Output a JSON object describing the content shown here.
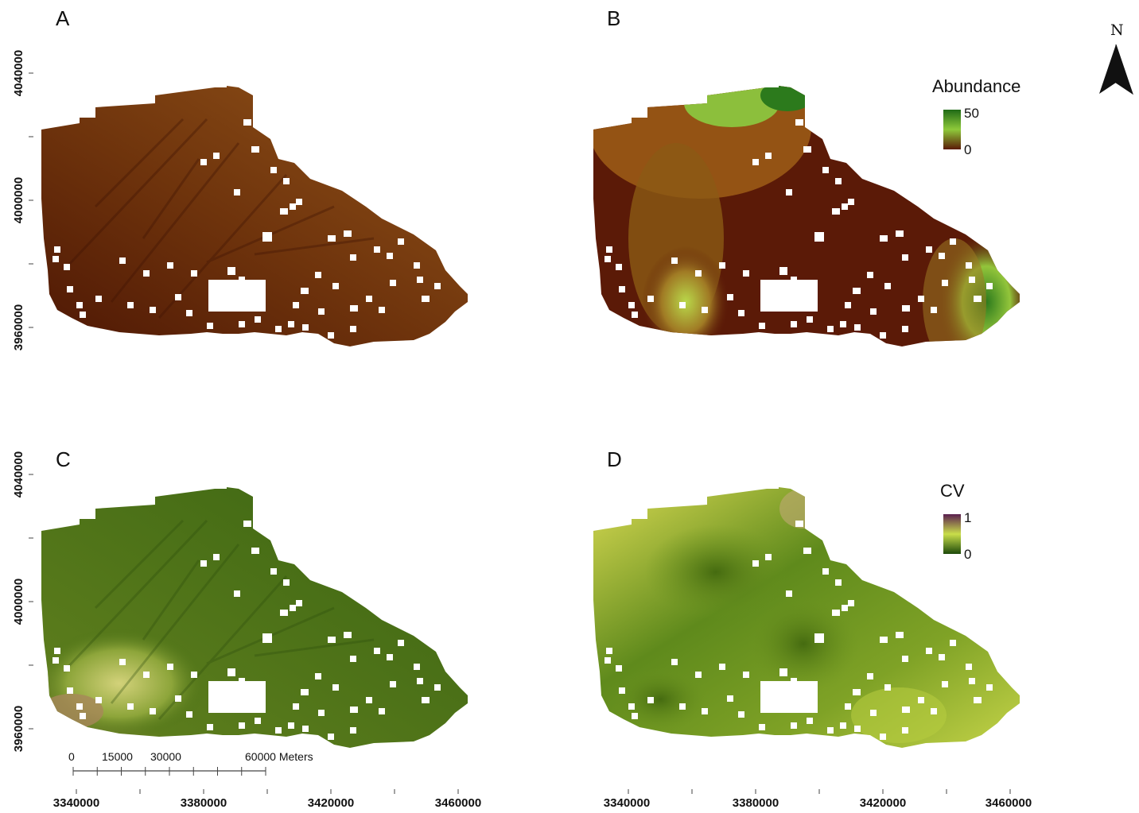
{
  "panels": {
    "a": {
      "label": "A"
    },
    "b": {
      "label": "B"
    },
    "c": {
      "label": "C"
    },
    "d": {
      "label": "D"
    }
  },
  "legend_abundance": {
    "title": "Abundance",
    "max": "50",
    "min": "0",
    "color_high": "#1f6a16",
    "color_mid": "#8ec93a",
    "color_low": "#5b1a07"
  },
  "legend_cv": {
    "title": "CV",
    "max": "1",
    "min": "0",
    "color_high": "#5a1f4f",
    "color_mid": "#c9de4a",
    "color_low": "#1d4a0a"
  },
  "north_arrow": {
    "label": "N",
    "icon": "north-arrow-icon"
  },
  "scale_bar": {
    "labels": [
      "0",
      "15000",
      "30000",
      "60000 Meters"
    ]
  },
  "x_axis": {
    "ticks": [
      "3340000",
      "3380000",
      "3420000",
      "3460000"
    ]
  },
  "y_axis": {
    "ticks": [
      "4040000",
      "4000000",
      "3960000"
    ]
  },
  "colors": {
    "panel_a_base": "#7a3f10",
    "panel_c_base": "#3f6b14",
    "panel_d_base": "#7fa226"
  }
}
